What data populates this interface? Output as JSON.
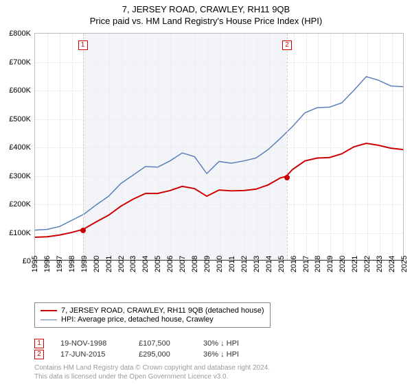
{
  "title": "7, JERSEY ROAD, CRAWLEY, RH11 9QB",
  "subtitle": "Price paid vs. HM Land Registry's House Price Index (HPI)",
  "chart": {
    "type": "line",
    "background_color": "#ffffff",
    "grid_color": "#eeeeee",
    "axis_color": "#333333",
    "ylim": [
      0,
      800000
    ],
    "ytick_step": 100000,
    "y_prefix": "£",
    "y_suffix": "K",
    "y_divisor": 1000,
    "xlim": [
      1995,
      2025
    ],
    "years": [
      1995,
      1996,
      1997,
      1998,
      1999,
      2000,
      2001,
      2002,
      2003,
      2004,
      2005,
      2006,
      2007,
      2008,
      2009,
      2010,
      2011,
      2012,
      2013,
      2014,
      2015,
      2016,
      2017,
      2018,
      2019,
      2020,
      2021,
      2022,
      2023,
      2024,
      2025
    ],
    "shade_band": {
      "start": 1998.88,
      "end": 2015.46,
      "color": "#f3f4f8"
    },
    "series": [
      {
        "id": "price_paid",
        "label": "7, JERSEY ROAD, CRAWLEY, RH11 9QB (detached house)",
        "color": "#cc0000",
        "line_width": 2,
        "points": [
          [
            1995,
            80000
          ],
          [
            1996,
            82000
          ],
          [
            1997,
            88000
          ],
          [
            1998,
            97000
          ],
          [
            1998.88,
            107500
          ],
          [
            1999,
            110000
          ],
          [
            2000,
            135000
          ],
          [
            2001,
            158000
          ],
          [
            2002,
            190000
          ],
          [
            2003,
            215000
          ],
          [
            2004,
            235000
          ],
          [
            2005,
            235000
          ],
          [
            2006,
            245000
          ],
          [
            2007,
            260000
          ],
          [
            2008,
            252000
          ],
          [
            2009,
            225000
          ],
          [
            2010,
            247000
          ],
          [
            2011,
            244000
          ],
          [
            2012,
            245000
          ],
          [
            2013,
            250000
          ],
          [
            2014,
            265000
          ],
          [
            2015,
            290000
          ],
          [
            2015.46,
            295000
          ],
          [
            2016,
            320000
          ],
          [
            2017,
            350000
          ],
          [
            2018,
            360000
          ],
          [
            2019,
            362000
          ],
          [
            2020,
            375000
          ],
          [
            2021,
            400000
          ],
          [
            2022,
            412000
          ],
          [
            2023,
            405000
          ],
          [
            2024,
            395000
          ],
          [
            2025,
            390000
          ]
        ]
      },
      {
        "id": "hpi",
        "label": "HPI: Average price, detached house, Crawley",
        "color": "#5b7fb8",
        "line_width": 1.5,
        "points": [
          [
            1995,
            105000
          ],
          [
            1996,
            108000
          ],
          [
            1997,
            118000
          ],
          [
            1998,
            140000
          ],
          [
            1999,
            162000
          ],
          [
            2000,
            195000
          ],
          [
            2001,
            225000
          ],
          [
            2002,
            270000
          ],
          [
            2003,
            300000
          ],
          [
            2004,
            330000
          ],
          [
            2005,
            328000
          ],
          [
            2006,
            350000
          ],
          [
            2007,
            378000
          ],
          [
            2008,
            365000
          ],
          [
            2009,
            305000
          ],
          [
            2010,
            348000
          ],
          [
            2011,
            342000
          ],
          [
            2012,
            350000
          ],
          [
            2013,
            360000
          ],
          [
            2014,
            390000
          ],
          [
            2015,
            430000
          ],
          [
            2016,
            472000
          ],
          [
            2017,
            520000
          ],
          [
            2018,
            538000
          ],
          [
            2019,
            540000
          ],
          [
            2020,
            555000
          ],
          [
            2021,
            600000
          ],
          [
            2022,
            648000
          ],
          [
            2023,
            635000
          ],
          [
            2024,
            615000
          ],
          [
            2025,
            612000
          ]
        ]
      }
    ],
    "sale_markers": [
      {
        "num": "1",
        "year": 1998.88,
        "value": 107500,
        "color": "#cc0000"
      },
      {
        "num": "2",
        "year": 2015.46,
        "value": 295000,
        "color": "#cc0000"
      }
    ]
  },
  "legend": {
    "items": [
      {
        "series": "price_paid"
      },
      {
        "series": "hpi"
      }
    ]
  },
  "sales": [
    {
      "num": "1",
      "date": "19-NOV-1998",
      "price": "£107,500",
      "delta": "30% ↓ HPI",
      "color": "#cc0000"
    },
    {
      "num": "2",
      "date": "17-JUN-2015",
      "price": "£295,000",
      "delta": "36% ↓ HPI",
      "color": "#cc0000"
    }
  ],
  "attribution": {
    "line1": "Contains HM Land Registry data © Crown copyright and database right 2024.",
    "line2": "This data is licensed under the Open Government Licence v3.0."
  }
}
